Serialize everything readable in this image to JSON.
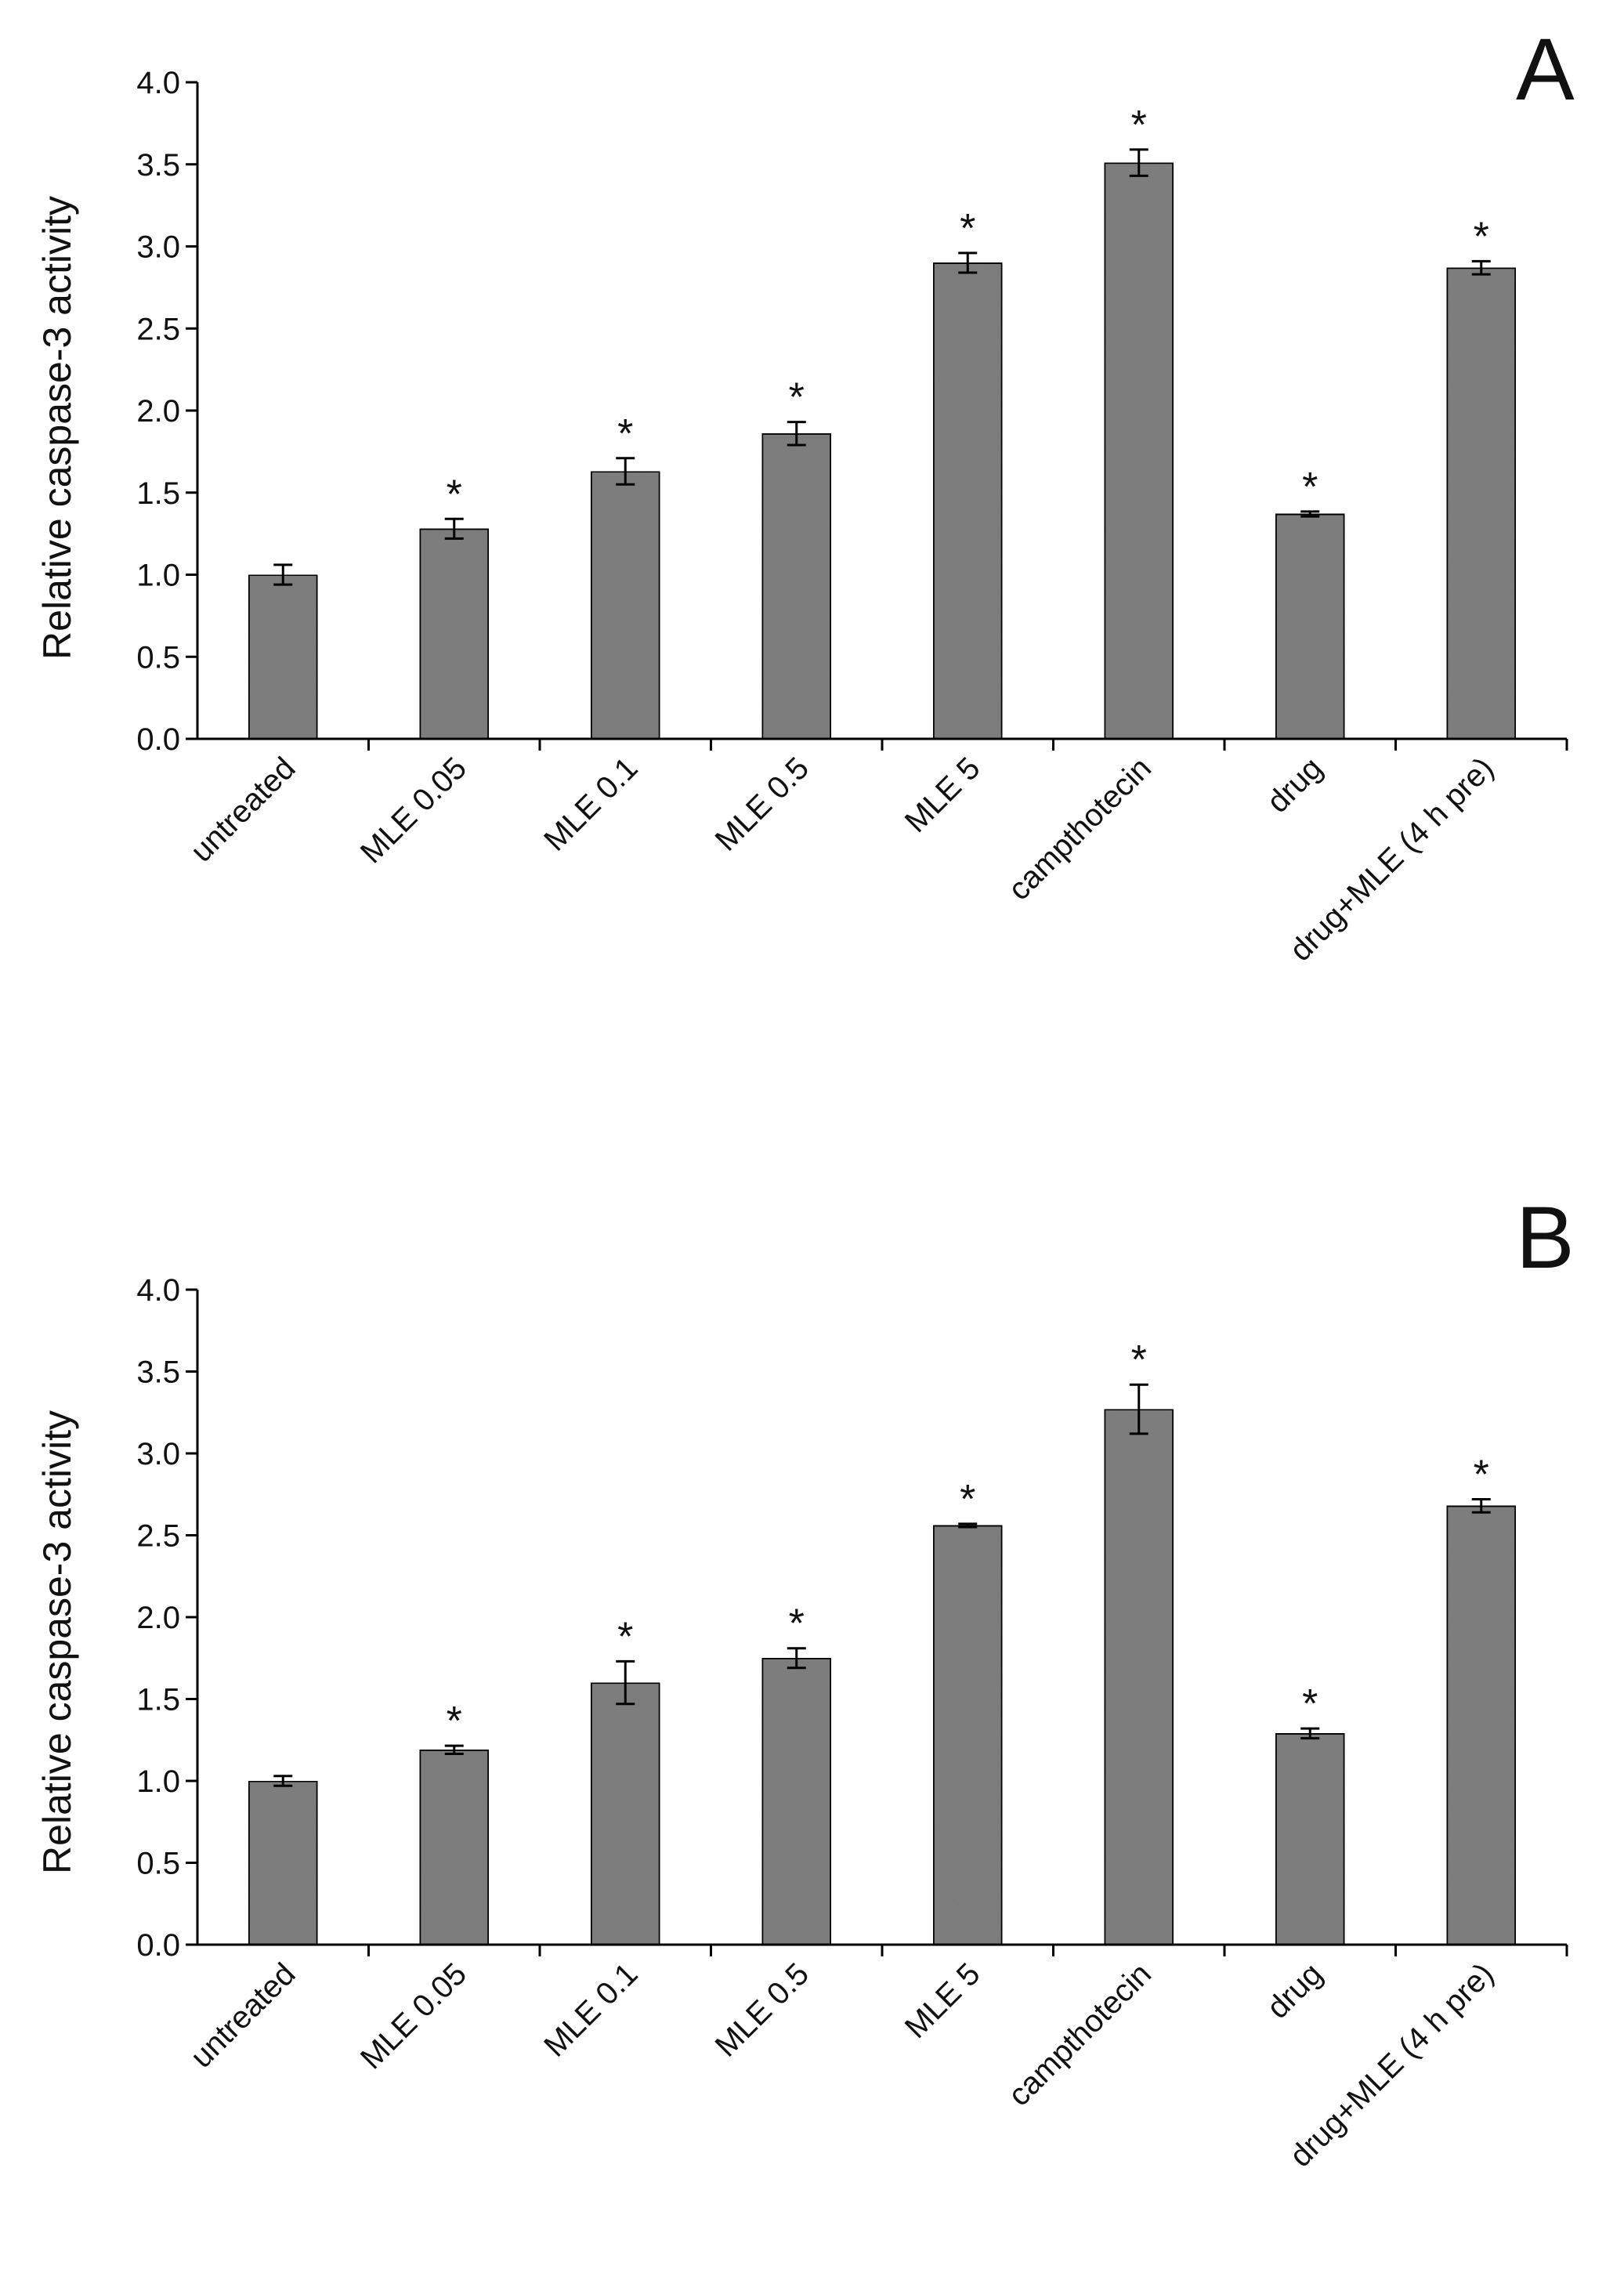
{
  "chart_data": [
    {
      "type": "bar",
      "panel_label": "A",
      "ylabel": "Relative caspase-3 activity",
      "xlabel": "",
      "ylim": [
        0,
        4.0
      ],
      "y_ticks": [
        "0.0",
        "0.5",
        "1.0",
        "1.5",
        "2.0",
        "2.5",
        "3.0",
        "3.5",
        "4.0"
      ],
      "categories": [
        "untreated",
        "MLE 0.05",
        "MLE 0.1",
        "MLE 0.5",
        "MLE 5",
        "campthotecin",
        "drug",
        "drug+MLE (4 h pre)"
      ],
      "values": [
        1.0,
        1.28,
        1.63,
        1.86,
        2.9,
        3.51,
        1.37,
        2.87
      ],
      "errors": [
        0.06,
        0.06,
        0.08,
        0.07,
        0.06,
        0.08,
        0.015,
        0.04
      ],
      "significance": [
        "",
        "*",
        "*",
        "*",
        "*",
        "*",
        "*",
        "*"
      ],
      "bar_color": "#7f7f7f"
    },
    {
      "type": "bar",
      "panel_label": "B",
      "ylabel": "Relative caspase-3 activity",
      "xlabel": "",
      "ylim": [
        0,
        4.0
      ],
      "y_ticks": [
        "0.0",
        "0.5",
        "1.0",
        "1.5",
        "2.0",
        "2.5",
        "3.0",
        "3.5",
        "4.0"
      ],
      "categories": [
        "untreated",
        "MLE 0.05",
        "MLE 0.1",
        "MLE 0.5",
        "MLE 5",
        "campthotecin",
        "drug",
        "drug+MLE (4 h pre)"
      ],
      "values": [
        1.0,
        1.19,
        1.6,
        1.75,
        2.56,
        3.27,
        1.29,
        2.68
      ],
      "errors": [
        0.03,
        0.025,
        0.13,
        0.06,
        0.01,
        0.15,
        0.03,
        0.04
      ],
      "significance": [
        "",
        "*",
        "*",
        "*",
        "*",
        "*",
        "*",
        "*"
      ],
      "bar_color": "#7f7f7f"
    }
  ]
}
